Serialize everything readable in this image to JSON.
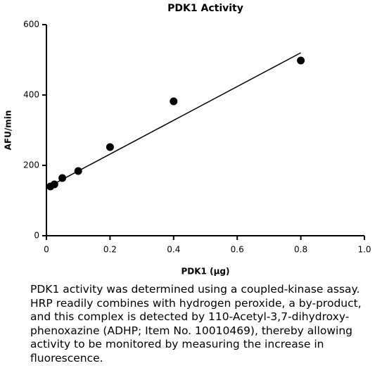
{
  "chart_data": {
    "type": "scatter",
    "title": "PDK1 Activity",
    "x_label": "PDK1 (µg)",
    "y_label": "AFU/min",
    "x": [
      0.0125,
      0.025,
      0.05,
      0.1,
      0.2,
      0.4,
      0.8
    ],
    "values": [
      140,
      146,
      164,
      184,
      252,
      382,
      498
    ],
    "color": "#000000",
    "fit": {
      "x": [
        0.0125,
        0.8
      ],
      "values": [
        142,
        520
      ]
    },
    "xlim": [
      0,
      1
    ],
    "xticks": [
      0,
      0.2,
      0.4,
      0.6,
      0.8,
      {
        "value": 1,
        "label": "1.0"
      }
    ],
    "ylim": [
      0,
      600
    ],
    "yticks": [
      0,
      200,
      400,
      600
    ]
  },
  "caption": "PDK1 activity was determined using a coupled-kinase assay. HRP readily combines with hydrogen peroxide, a by-product, and this complex is detected by 110-Acetyl-3,7-dihydroxy-phenoxazine (ADHP; Item No. 10010469), thereby allowing activity to be monitored by measuring the increase in fluorescence."
}
